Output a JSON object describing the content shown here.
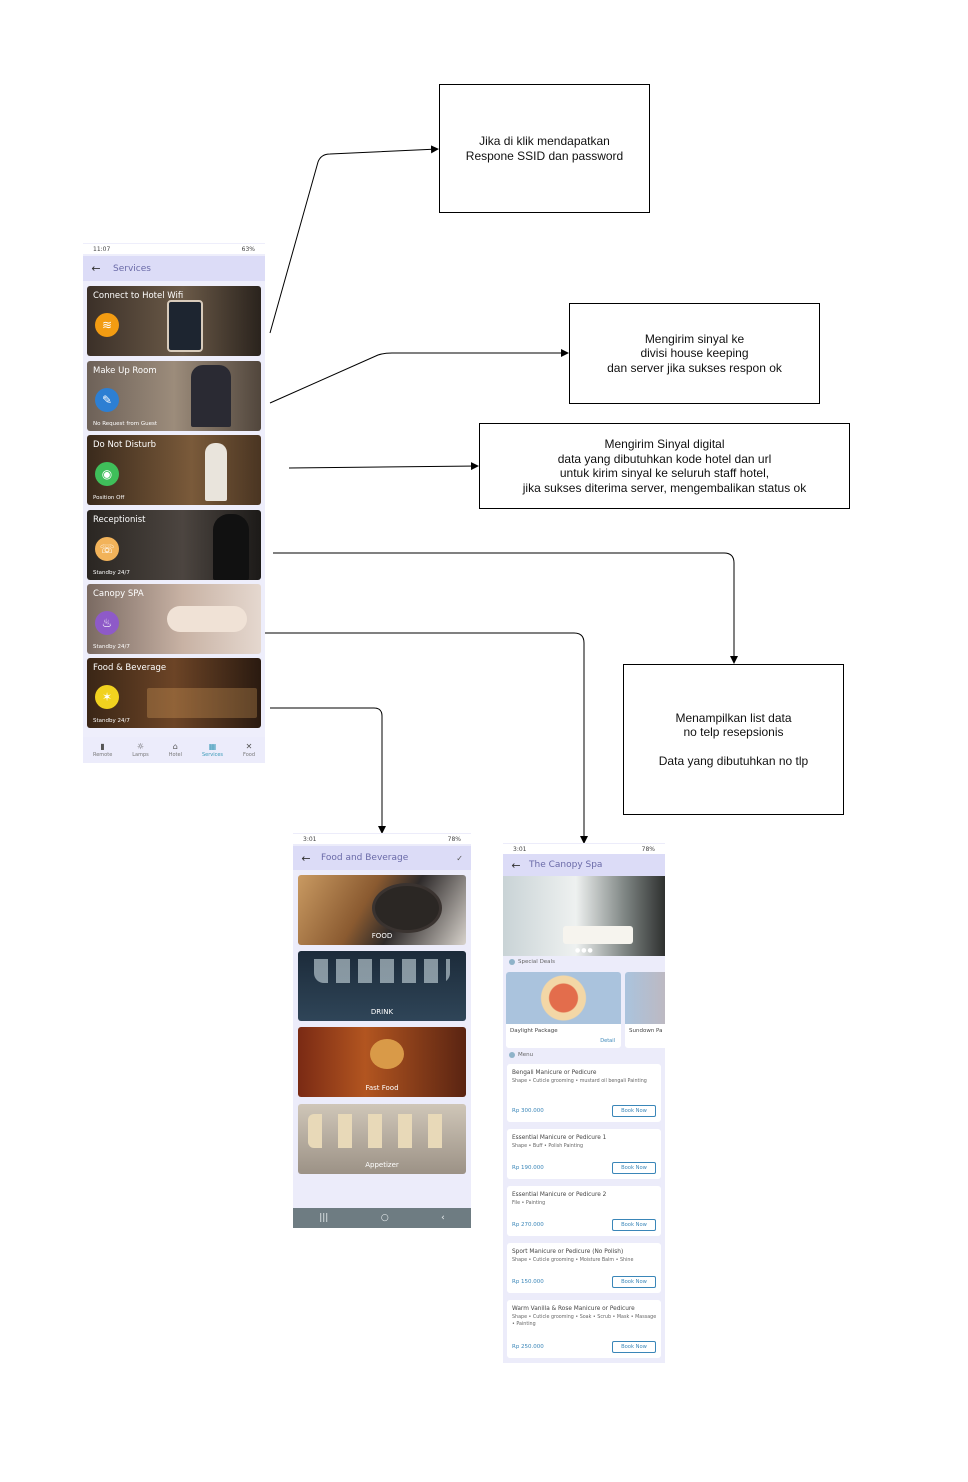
{
  "boxes": {
    "wifi": [
      "Jika di klik mendapatkan",
      "Respone SSID dan password"
    ],
    "housekeeping": [
      "Mengirim sinyal ke",
      "divisi house keeping",
      "dan server jika sukses respon ok"
    ],
    "dnd": [
      "Mengirim Sinyal digital",
      "data yang dibutuhkan kode hotel dan url",
      "untuk kirim sinyal ke seluruh staff hotel,",
      "jika sukses diterima server, mengembalikan status ok"
    ],
    "receptionist": [
      "Menampilkan list data",
      "no telp resepsionis",
      "",
      "Data yang dibutuhkan no tlp"
    ]
  },
  "services_screen": {
    "status_time": "11:07",
    "status_right": "63%",
    "title": "Services",
    "cards": [
      {
        "title": "Connect to Hotel Wifi",
        "sub": ""
      },
      {
        "title": "Make Up Room",
        "sub": "No Request from Guest"
      },
      {
        "title": "Do Not Disturb",
        "sub": "Position Off"
      },
      {
        "title": "Receptionist",
        "sub": "Standby 24/7"
      },
      {
        "title": "Canopy SPA",
        "sub": "Standby 24/7"
      },
      {
        "title": "Food & Beverage",
        "sub": "Standby 24/7"
      }
    ],
    "nav": [
      "Remote",
      "Lamps",
      "Hotel",
      "Services",
      "Food"
    ],
    "active_nav": "Services"
  },
  "food_screen": {
    "status_time": "3:01",
    "status_right": "78%",
    "title": "Food and Beverage",
    "categories": [
      "FOOD",
      "DRINK",
      "Fast Food",
      "Appetizer"
    ]
  },
  "spa_screen": {
    "status_time": "3:01",
    "status_right": "78%",
    "title": "The Canopy Spa",
    "special_deals_label": "Special Deals",
    "deals": [
      {
        "name": "Daylight Package",
        "detail": "Detail"
      },
      {
        "name": "Sundown Pa",
        "detail": ""
      }
    ],
    "menu_label": "Menu",
    "book_label": "Book Now",
    "menu": [
      {
        "title": "Bengali Manicure or Pedicure",
        "desc": "Shape • Cuticle grooming • mustard oil bengali Painting",
        "price": "Rp 300.000"
      },
      {
        "title": "Essential Manicure or Pedicure 1",
        "desc": "Shape • Buff • Polish Painting",
        "price": "Rp 190.000"
      },
      {
        "title": "Essential Manicure or Pedicure 2",
        "desc": "File • Painting",
        "price": "Rp 270.000"
      },
      {
        "title": "Sport Manicure or Pedicure (No Polish)",
        "desc": "Shape • Cuticle grooming • Moisture Balm • Shine",
        "price": "Rp 150.000"
      },
      {
        "title": "Warm Vanilla & Rose Manicure or Pedicure",
        "desc": "Shape • Cuticle grooming • Soak • Scrub • Mask • Massage • Painting",
        "price": "Rp 250.000"
      }
    ]
  },
  "colors": {
    "appbar": "#dcdcf7",
    "accent": "#3a86b8",
    "wifi_icon": "#f39c12",
    "makeup_icon": "#2d7fd3",
    "dnd_icon": "#3fbf5a",
    "reception_icon": "#f2b35a",
    "spa_icon": "#8e5ac8",
    "food_icon": "#f1d21f"
  }
}
